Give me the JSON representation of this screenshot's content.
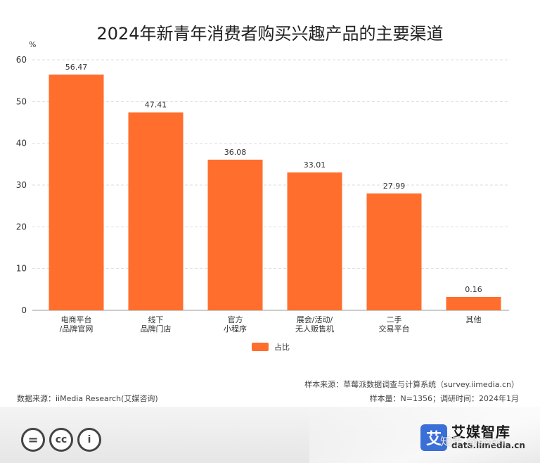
{
  "chart_data": {
    "type": "bar",
    "title": "2024年新青年消费者购买兴趣产品的主要渠道",
    "ylabel": "%",
    "ylim": [
      0,
      60
    ],
    "yticks": [
      0,
      10,
      20,
      30,
      40,
      50,
      60
    ],
    "grid": true,
    "legend_position": "bottom-center",
    "categories": [
      [
        "电商平台",
        "/品牌官网"
      ],
      [
        "线下",
        "品牌门店"
      ],
      [
        "官方",
        "小程序"
      ],
      [
        "展会/活动/",
        "无人贩售机"
      ],
      [
        "二手",
        "交易平台"
      ],
      [
        "其他"
      ]
    ],
    "series": [
      {
        "name": "占比",
        "values": [
          56.47,
          47.41,
          36.08,
          33.01,
          27.99,
          0.16
        ],
        "labels": [
          "56.47",
          "47.41",
          "36.08",
          "33.01",
          "27.99",
          "0.16"
        ]
      }
    ]
  },
  "colors": {
    "bar": "#FF6E2C",
    "grid": "#dddddd",
    "axis": "#999999"
  },
  "notes": {
    "sample_source": "样本来源：草莓派数据调查与计算系统（survey.iimedia.cn）",
    "data_source": "数据来源：iiMedia Research(艾媒咨询)",
    "sample_size": "样本量：N=1356；调研时间：2024年1月"
  },
  "footer": {
    "license_icons": [
      "equals-icon",
      "cc-icon",
      "person-icon"
    ],
    "license_glyphs": [
      "=",
      "cc",
      "i"
    ],
    "brand_logo_char": "艾",
    "brand_name": "艾媒智库",
    "brand_url": "data.iimedia.cn",
    "watermark": "知乎 @shen"
  }
}
